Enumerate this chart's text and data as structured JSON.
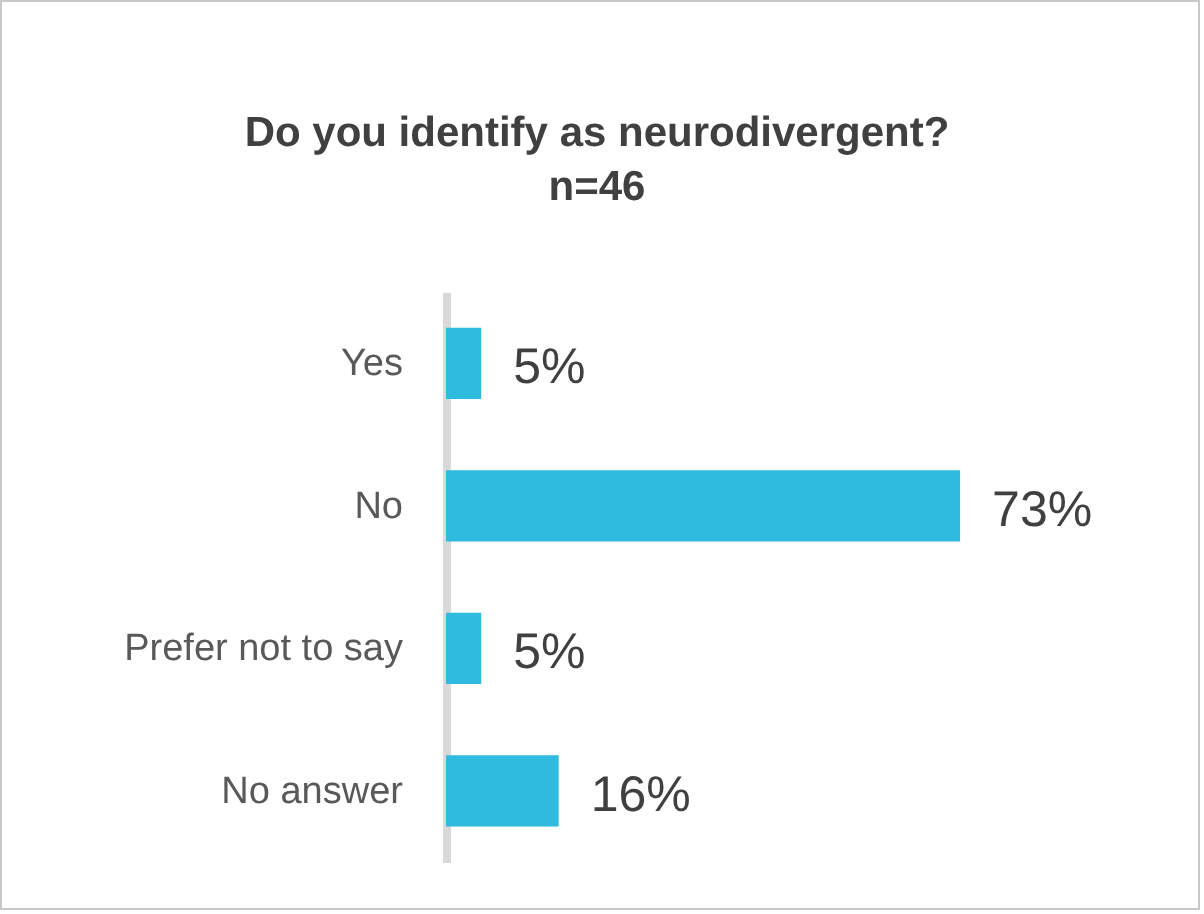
{
  "chart_data": {
    "type": "bar",
    "orientation": "horizontal",
    "title": "Do you identify as neurodivergent?",
    "subtitle": "n=46",
    "categories": [
      "Yes",
      "No",
      "Prefer not to say",
      "No answer"
    ],
    "values": [
      5,
      73,
      5,
      16
    ],
    "color": "#2fbadf",
    "value_labels": [
      "5%",
      "73%",
      "5%",
      "16%"
    ]
  }
}
